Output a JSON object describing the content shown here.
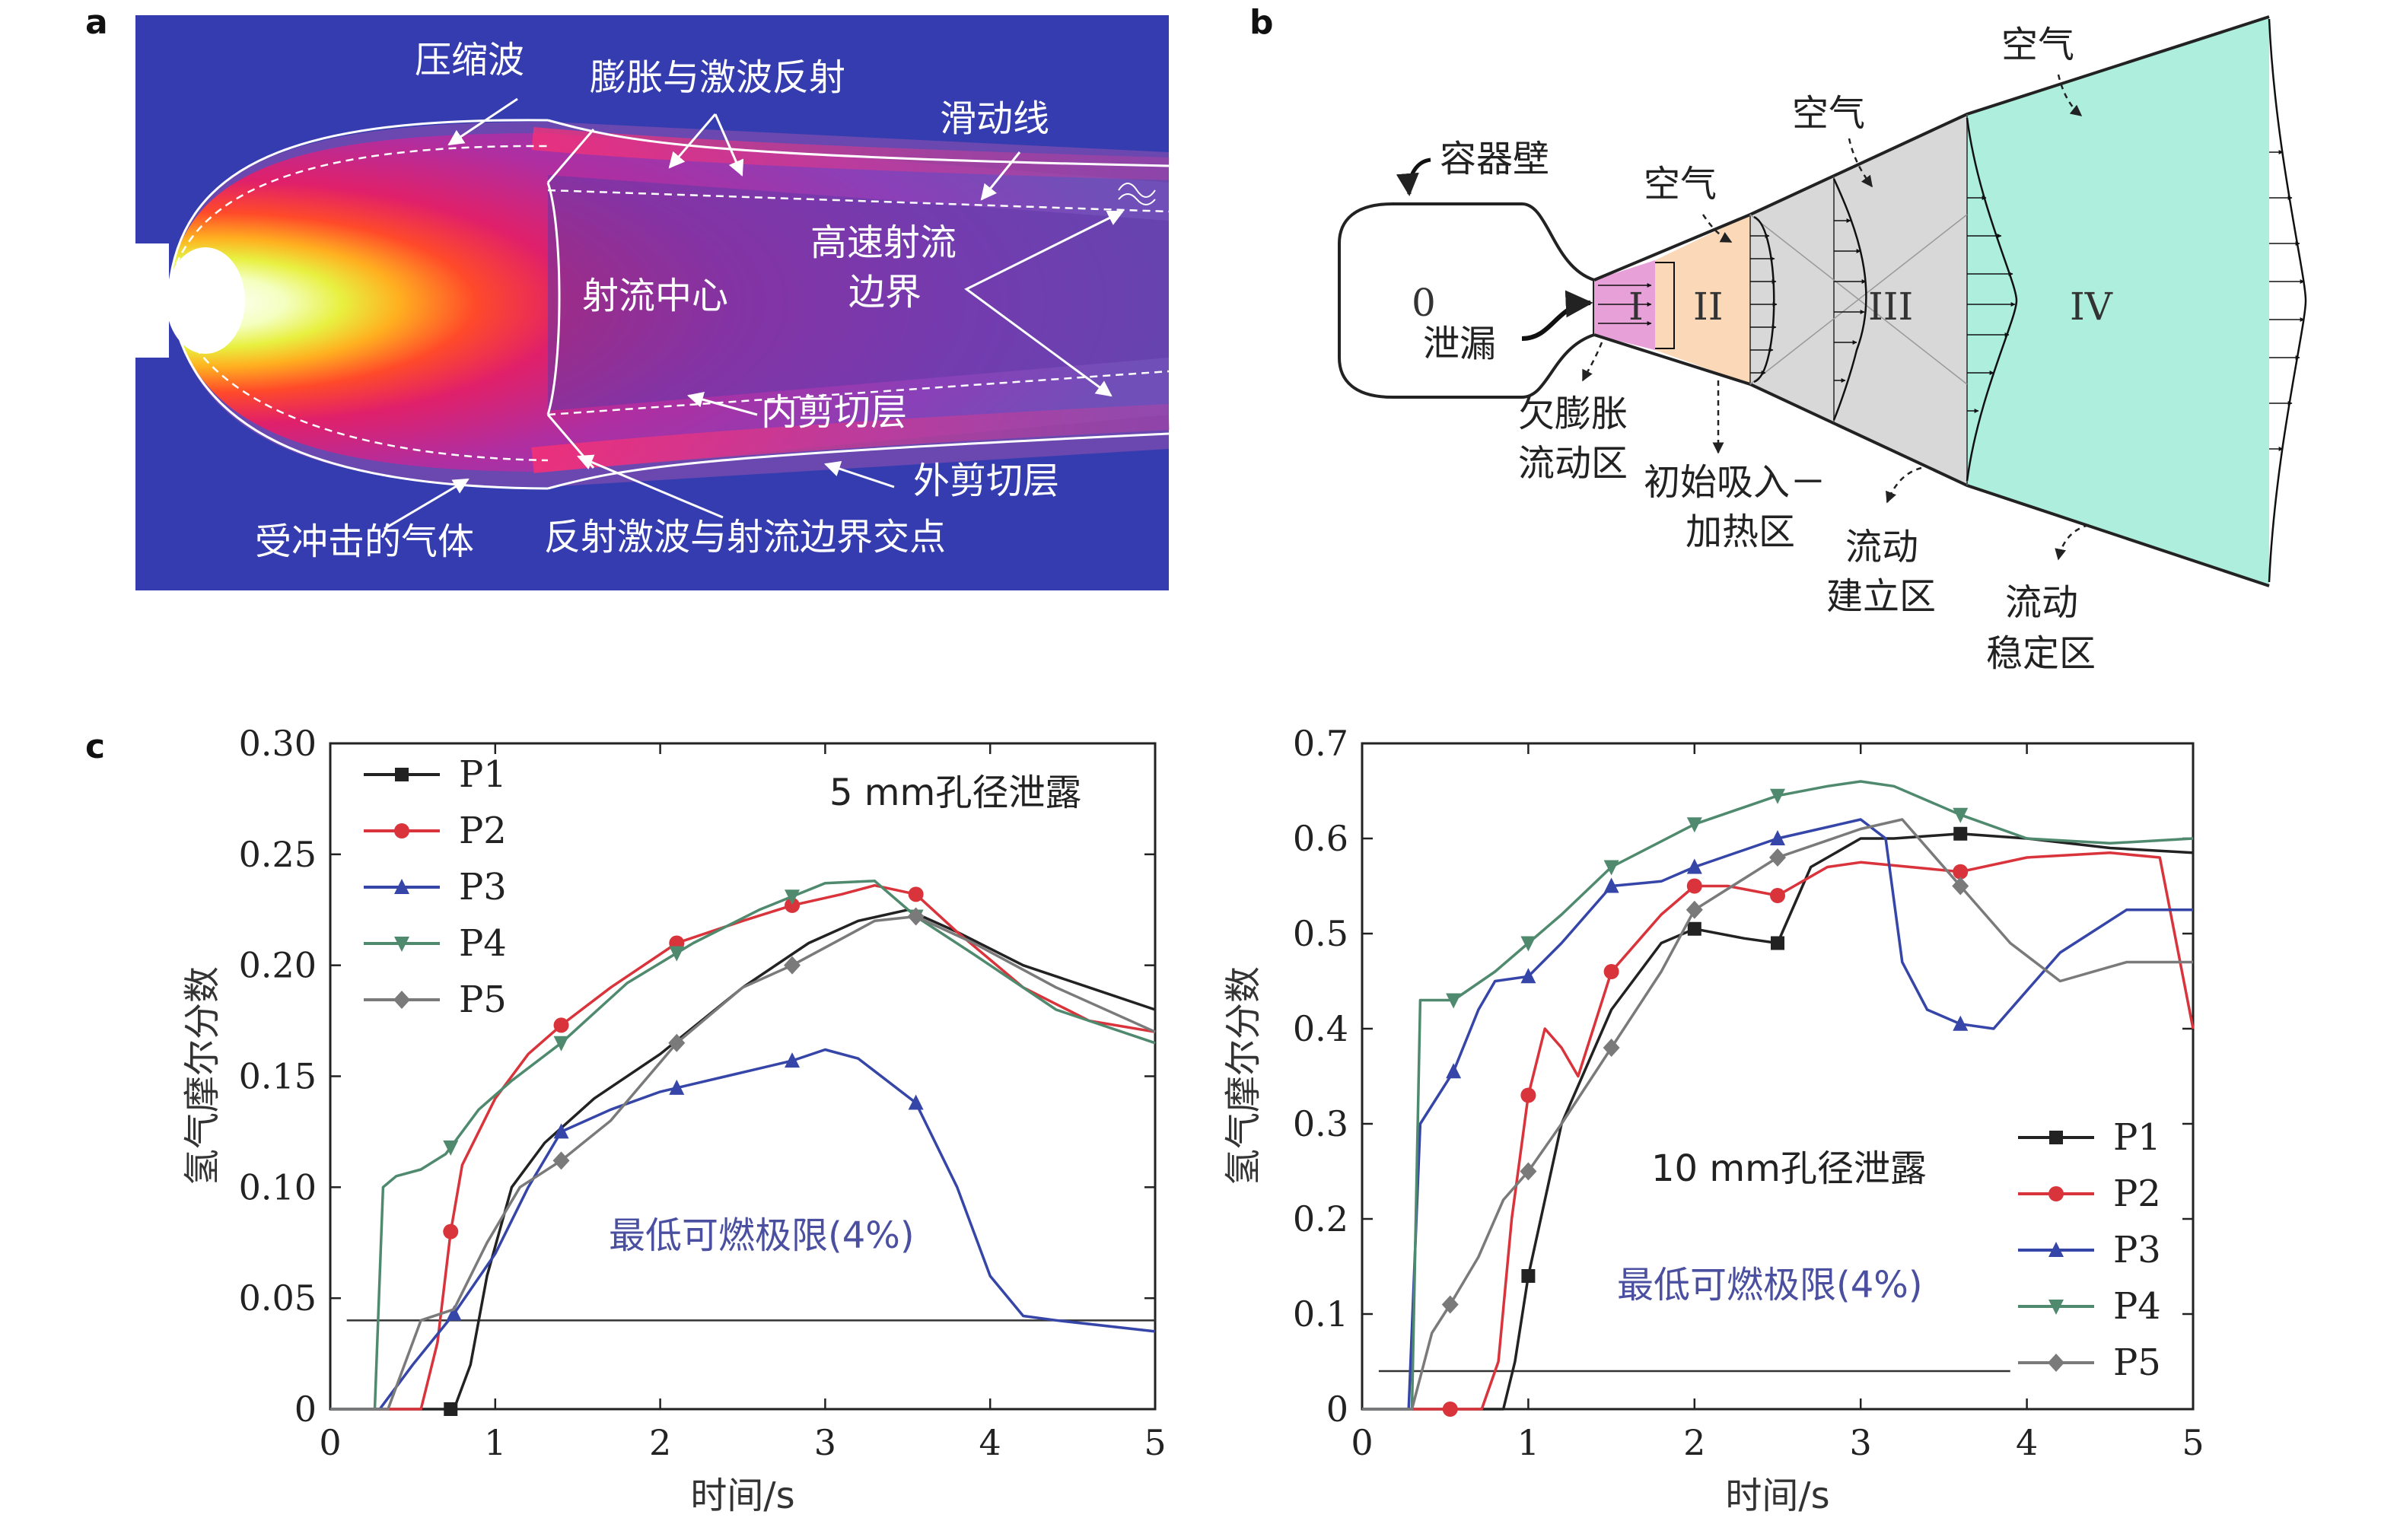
{
  "panel_labels": [
    "a",
    "b",
    "c"
  ],
  "panel_a": {
    "labels": {
      "compression_wave": "压缩波",
      "expansion_reflection": "膨胀与激波反射",
      "slip_line": "滑动线",
      "jet_core": "射流中心",
      "high_speed_boundary_1": "高速射流",
      "high_speed_boundary_2": "边界",
      "inner_shear": "内剪切层",
      "outer_shear": "外剪切层",
      "shocked_gas": "受冲击的气体",
      "intersection": "反射激波与射流边界交点"
    }
  },
  "panel_b": {
    "labels": {
      "vessel_wall": "容器壁",
      "zone0_num": "0",
      "zone0_name": "泄漏",
      "air1": "空气",
      "air2": "空气",
      "air3": "空气",
      "roman_I": "I",
      "roman_II": "II",
      "roman_III": "III",
      "roman_IV": "IV",
      "underexpanded_1": "欠膨胀",
      "underexpanded_2": "流动区",
      "initial_1": "初始吸入－",
      "initial_2": "加热区",
      "establish_1": "流动",
      "establish_2": "建立区",
      "steady_1": "流动",
      "steady_2": "稳定区"
    }
  },
  "chart_data": [
    {
      "type": "line",
      "title": "5 mm孔径泄露",
      "xlabel": "时间/s",
      "ylabel": "氢气摩尔分数",
      "xlim": [
        0,
        5
      ],
      "ylim": [
        0,
        0.3
      ],
      "xticks": [
        "0",
        "1",
        "2",
        "3",
        "4",
        "5"
      ],
      "yticks": [
        "0",
        "0.05",
        "0.10",
        "0.15",
        "0.20",
        "0.25",
        "0.30"
      ],
      "annotation": "最低可燃极限(4%)",
      "limit_y": 0.04,
      "limit_x": [
        0.1,
        5.0
      ],
      "legend_position": "top-left",
      "series": [
        {
          "name": "P1",
          "color": "#222222",
          "marker": "square",
          "x": [
            0,
            0.6,
            0.75,
            0.85,
            0.95,
            1.1,
            1.3,
            1.6,
            2.0,
            2.5,
            2.9,
            3.2,
            3.5,
            3.8,
            4.2,
            4.6,
            5.0
          ],
          "y": [
            0,
            0,
            0,
            0.02,
            0.06,
            0.1,
            0.12,
            0.14,
            0.16,
            0.19,
            0.21,
            0.22,
            0.225,
            0.215,
            0.2,
            0.19,
            0.18
          ],
          "marker_x": [
            0.73
          ]
        },
        {
          "name": "P2",
          "color": "#d9343b",
          "marker": "circle",
          "x": [
            0,
            0.55,
            0.65,
            0.73,
            0.8,
            1.0,
            1.2,
            1.4,
            1.7,
            2.1,
            2.5,
            2.8,
            3.1,
            3.3,
            3.55,
            3.8,
            4.2,
            4.6,
            5.0
          ],
          "y": [
            0,
            0,
            0.03,
            0.08,
            0.11,
            0.14,
            0.16,
            0.173,
            0.19,
            0.21,
            0.22,
            0.227,
            0.232,
            0.236,
            0.232,
            0.215,
            0.19,
            0.175,
            0.17
          ],
          "marker_x": [
            0.73,
            1.4,
            2.1,
            2.8,
            3.55
          ]
        },
        {
          "name": "P3",
          "color": "#3545a8",
          "marker": "triangle",
          "x": [
            0,
            0.3,
            0.5,
            0.75,
            1.0,
            1.2,
            1.4,
            1.7,
            2.0,
            2.4,
            2.8,
            3.0,
            3.2,
            3.55,
            3.8,
            4.0,
            4.2,
            4.4,
            5.0
          ],
          "y": [
            0,
            0,
            0.02,
            0.043,
            0.07,
            0.1,
            0.125,
            0.135,
            0.143,
            0.15,
            0.157,
            0.162,
            0.158,
            0.138,
            0.1,
            0.06,
            0.042,
            0.04,
            0.035
          ],
          "marker_x": [
            0.75,
            1.4,
            2.1,
            2.8,
            3.55
          ]
        },
        {
          "name": "P4",
          "color": "#4f8a6f",
          "marker": "triangle-down",
          "x": [
            0,
            0.27,
            0.32,
            0.4,
            0.55,
            0.7,
            0.9,
            1.1,
            1.4,
            1.8,
            2.2,
            2.6,
            3.0,
            3.3,
            3.55,
            3.9,
            4.4,
            5.0
          ],
          "y": [
            0,
            0,
            0.1,
            0.105,
            0.108,
            0.115,
            0.135,
            0.148,
            0.165,
            0.192,
            0.21,
            0.225,
            0.237,
            0.238,
            0.222,
            0.205,
            0.18,
            0.165
          ],
          "marker_x": [
            0.73,
            1.4,
            2.1,
            2.8,
            3.55
          ]
        },
        {
          "name": "P5",
          "color": "#7a7a7a",
          "marker": "diamond",
          "x": [
            0,
            0.35,
            0.55,
            0.75,
            0.95,
            1.15,
            1.4,
            1.7,
            2.1,
            2.5,
            2.8,
            3.1,
            3.3,
            3.55,
            3.9,
            4.4,
            5.0
          ],
          "y": [
            0,
            0,
            0.04,
            0.045,
            0.075,
            0.1,
            0.112,
            0.13,
            0.165,
            0.19,
            0.2,
            0.212,
            0.22,
            0.222,
            0.21,
            0.19,
            0.17
          ],
          "marker_x": [
            1.4,
            2.1,
            2.8,
            3.55
          ]
        }
      ]
    },
    {
      "type": "line",
      "title": "10 mm孔径泄露",
      "xlabel": "时间/s",
      "ylabel": "氢气摩尔分数",
      "xlim": [
        0,
        5
      ],
      "ylim": [
        0,
        0.7
      ],
      "xticks": [
        "0",
        "1",
        "2",
        "3",
        "4",
        "5"
      ],
      "yticks": [
        "0",
        "0.1",
        "0.2",
        "0.3",
        "0.4",
        "0.5",
        "0.6",
        "0.7"
      ],
      "annotation": "最低可燃极限(4%)",
      "limit_y": 0.04,
      "limit_x": [
        0.1,
        3.9
      ],
      "legend_position": "bottom-right",
      "series": [
        {
          "name": "P1",
          "color": "#222222",
          "marker": "square",
          "x": [
            0,
            0.85,
            0.92,
            1.0,
            1.2,
            1.5,
            1.8,
            2.0,
            2.3,
            2.5,
            2.7,
            3.0,
            3.2,
            3.6,
            4.0,
            4.5,
            5.0
          ],
          "y": [
            0,
            0,
            0.05,
            0.14,
            0.3,
            0.42,
            0.49,
            0.505,
            0.495,
            0.49,
            0.57,
            0.6,
            0.6,
            0.605,
            0.6,
            0.59,
            0.585
          ],
          "marker_x": [
            1.0,
            2.0,
            2.5,
            3.6
          ]
        },
        {
          "name": "P2",
          "color": "#d9343b",
          "marker": "circle",
          "x": [
            0,
            0.5,
            0.72,
            0.82,
            0.9,
            1.0,
            1.1,
            1.2,
            1.3,
            1.5,
            1.8,
            2.0,
            2.2,
            2.5,
            2.8,
            3.0,
            3.6,
            4.0,
            4.5,
            4.8,
            5.0
          ],
          "y": [
            0,
            0,
            0,
            0.05,
            0.2,
            0.33,
            0.4,
            0.38,
            0.35,
            0.46,
            0.52,
            0.55,
            0.55,
            0.54,
            0.57,
            0.575,
            0.565,
            0.58,
            0.585,
            0.58,
            0.4
          ],
          "marker_x": [
            0.53,
            1.0,
            1.5,
            2.0,
            2.5,
            3.6
          ]
        },
        {
          "name": "P3",
          "color": "#3545a8",
          "marker": "triangle",
          "x": [
            0,
            0.28,
            0.35,
            0.55,
            0.7,
            0.8,
            1.0,
            1.2,
            1.5,
            1.8,
            2.0,
            2.5,
            3.0,
            3.15,
            3.25,
            3.4,
            3.6,
            3.8,
            4.2,
            4.6,
            5.0
          ],
          "y": [
            0,
            0,
            0.3,
            0.355,
            0.42,
            0.45,
            0.455,
            0.49,
            0.55,
            0.555,
            0.57,
            0.6,
            0.62,
            0.6,
            0.47,
            0.42,
            0.405,
            0.4,
            0.48,
            0.525,
            0.525
          ],
          "marker_x": [
            0.55,
            1.0,
            1.5,
            2.0,
            2.5,
            3.6
          ]
        },
        {
          "name": "P4",
          "color": "#4f8a6f",
          "marker": "triangle-down",
          "x": [
            0,
            0.3,
            0.35,
            0.55,
            0.8,
            1.0,
            1.2,
            1.5,
            2.0,
            2.5,
            2.8,
            3.0,
            3.2,
            3.6,
            4.0,
            4.5,
            5.0
          ],
          "y": [
            0,
            0,
            0.43,
            0.43,
            0.46,
            0.49,
            0.52,
            0.57,
            0.615,
            0.645,
            0.655,
            0.66,
            0.655,
            0.625,
            0.6,
            0.595,
            0.6
          ],
          "marker_x": [
            0.55,
            1.0,
            1.5,
            2.0,
            2.5,
            3.6
          ]
        },
        {
          "name": "P5",
          "color": "#7a7a7a",
          "marker": "diamond",
          "x": [
            0,
            0.3,
            0.42,
            0.53,
            0.7,
            0.85,
            1.0,
            1.2,
            1.5,
            1.8,
            2.0,
            2.5,
            3.0,
            3.25,
            3.6,
            3.9,
            4.2,
            4.6,
            5.0
          ],
          "y": [
            0,
            0,
            0.08,
            0.11,
            0.16,
            0.22,
            0.25,
            0.3,
            0.38,
            0.46,
            0.525,
            0.58,
            0.61,
            0.62,
            0.55,
            0.49,
            0.45,
            0.47,
            0.47
          ],
          "marker_x": [
            0.53,
            1.0,
            1.5,
            2.0,
            2.5,
            3.6
          ]
        }
      ]
    }
  ]
}
